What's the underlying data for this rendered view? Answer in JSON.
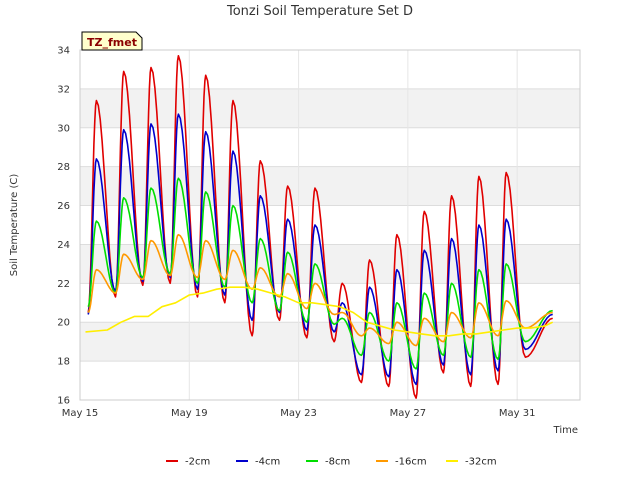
{
  "chart_data": {
    "type": "line",
    "title": "Tonzi Soil Temperature Set D",
    "xlabel": "Time",
    "ylabel": "Soil Temperature (C)",
    "site_badge": "TZ_fmet",
    "x_unit": "day of May",
    "xlim": [
      15,
      33.3
    ],
    "ylim": [
      16,
      34
    ],
    "x_ticks": [
      {
        "value": 15,
        "label": "May 15"
      },
      {
        "value": 19,
        "label": "May 19"
      },
      {
        "value": 23,
        "label": "May 23"
      },
      {
        "value": 27,
        "label": "May 27"
      },
      {
        "value": 31,
        "label": "May 31"
      }
    ],
    "y_ticks": [
      16,
      18,
      20,
      22,
      24,
      26,
      28,
      30,
      32,
      34
    ],
    "grid": true,
    "legend_position": "bottom",
    "series": [
      {
        "name": "-2cm",
        "color": "#e00000",
        "minima": [
          20.5,
          21.3,
          21.9,
          22.0,
          21.3,
          21.0,
          19.3,
          20.1,
          19.2,
          19.0,
          16.9,
          16.7,
          16.1,
          17.4,
          16.7,
          16.8,
          18.2,
          20.2
        ],
        "maxima": [
          31.4,
          32.9,
          33.1,
          33.7,
          32.7,
          31.4,
          28.3,
          27.0,
          26.9,
          22.0,
          23.2,
          24.5,
          25.7,
          26.5,
          27.5,
          27.7
        ]
      },
      {
        "name": "-4cm",
        "color": "#0000cc",
        "minima": [
          20.4,
          21.6,
          22.1,
          22.3,
          21.7,
          21.4,
          20.1,
          20.5,
          19.6,
          19.5,
          17.3,
          17.2,
          16.8,
          17.8,
          17.3,
          17.5,
          18.6,
          20.4
        ],
        "maxima": [
          28.4,
          29.9,
          30.2,
          30.7,
          29.8,
          28.8,
          26.5,
          25.3,
          25.0,
          21.0,
          21.8,
          22.7,
          23.7,
          24.3,
          25.0,
          25.3
        ]
      },
      {
        "name": "-8cm",
        "color": "#00dd00",
        "minima": [
          20.8,
          21.5,
          22.3,
          22.5,
          22.0,
          21.8,
          21.0,
          20.6,
          20.0,
          19.9,
          18.3,
          18.0,
          17.6,
          18.3,
          18.2,
          18.1,
          19.0,
          20.6
        ],
        "maxima": [
          25.2,
          26.4,
          26.9,
          27.4,
          26.7,
          26.0,
          24.3,
          23.6,
          23.0,
          20.2,
          20.5,
          21.0,
          21.5,
          22.0,
          22.7,
          23.0
        ]
      },
      {
        "name": "-16cm",
        "color": "#ff9900",
        "minima": [
          20.5,
          21.5,
          22.2,
          22.4,
          22.3,
          22.2,
          21.7,
          21.3,
          20.7,
          20.4,
          19.3,
          18.9,
          18.8,
          19.0,
          19.2,
          19.3,
          19.7,
          20.5
        ],
        "maxima": [
          22.7,
          23.5,
          24.2,
          24.5,
          24.2,
          23.7,
          22.8,
          22.5,
          22.0,
          20.5,
          19.7,
          20.0,
          20.2,
          20.5,
          21.0,
          21.1
        ]
      },
      {
        "name": "-32cm",
        "color": "#ffee00",
        "points": [
          [
            15.2,
            19.5
          ],
          [
            16.0,
            19.6
          ],
          [
            16.5,
            20.0
          ],
          [
            17.0,
            20.3
          ],
          [
            17.5,
            20.3
          ],
          [
            18.0,
            20.8
          ],
          [
            18.5,
            21.0
          ],
          [
            19.0,
            21.4
          ],
          [
            19.5,
            21.5
          ],
          [
            20.0,
            21.7
          ],
          [
            20.5,
            21.8
          ],
          [
            21.0,
            21.8
          ],
          [
            21.5,
            21.7
          ],
          [
            22.0,
            21.5
          ],
          [
            22.5,
            21.3
          ],
          [
            23.0,
            21.0
          ],
          [
            23.5,
            21.0
          ],
          [
            24.0,
            20.9
          ],
          [
            24.5,
            20.8
          ],
          [
            25.0,
            20.5
          ],
          [
            25.5,
            20.0
          ],
          [
            26.0,
            19.8
          ],
          [
            26.5,
            19.6
          ],
          [
            27.0,
            19.5
          ],
          [
            27.5,
            19.4
          ],
          [
            28.0,
            19.3
          ],
          [
            28.5,
            19.3
          ],
          [
            29.0,
            19.4
          ],
          [
            29.5,
            19.4
          ],
          [
            30.0,
            19.5
          ],
          [
            30.5,
            19.6
          ],
          [
            31.0,
            19.7
          ],
          [
            31.5,
            19.7
          ],
          [
            32.0,
            19.8
          ],
          [
            32.3,
            20.0
          ]
        ]
      }
    ]
  }
}
